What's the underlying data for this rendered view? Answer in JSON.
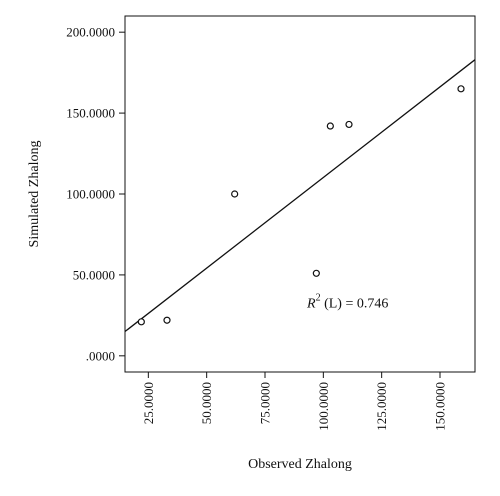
{
  "chart_data": {
    "type": "scatter",
    "xlabel": "Observed Zhalong",
    "ylabel": "Simulated Zhalong",
    "xlim": [
      15,
      165
    ],
    "ylim": [
      -10,
      210
    ],
    "x_ticks": [
      25,
      50,
      75,
      100,
      125,
      150
    ],
    "x_tick_labels": [
      "25.0000",
      "50.0000",
      "75.0000",
      "100.0000",
      "125.0000",
      "150.0000"
    ],
    "y_ticks": [
      0,
      50,
      100,
      150,
      200
    ],
    "y_tick_labels": [
      ".0000",
      "50.0000",
      "100.0000",
      "150.0000",
      "200.0000"
    ],
    "points": [
      {
        "x": 22,
        "y": 21
      },
      {
        "x": 33,
        "y": 22
      },
      {
        "x": 62,
        "y": 100
      },
      {
        "x": 97,
        "y": 51
      },
      {
        "x": 103,
        "y": 142
      },
      {
        "x": 111,
        "y": 143
      },
      {
        "x": 159,
        "y": 165
      }
    ],
    "fit_line": {
      "x": [
        15,
        165
      ],
      "y": [
        15,
        183
      ]
    },
    "annotation": {
      "prefix": "R",
      "superscript": "2",
      "suffix": " (L) = 0.746",
      "x": 93,
      "y": 30
    },
    "grid": false,
    "legend": "none"
  }
}
